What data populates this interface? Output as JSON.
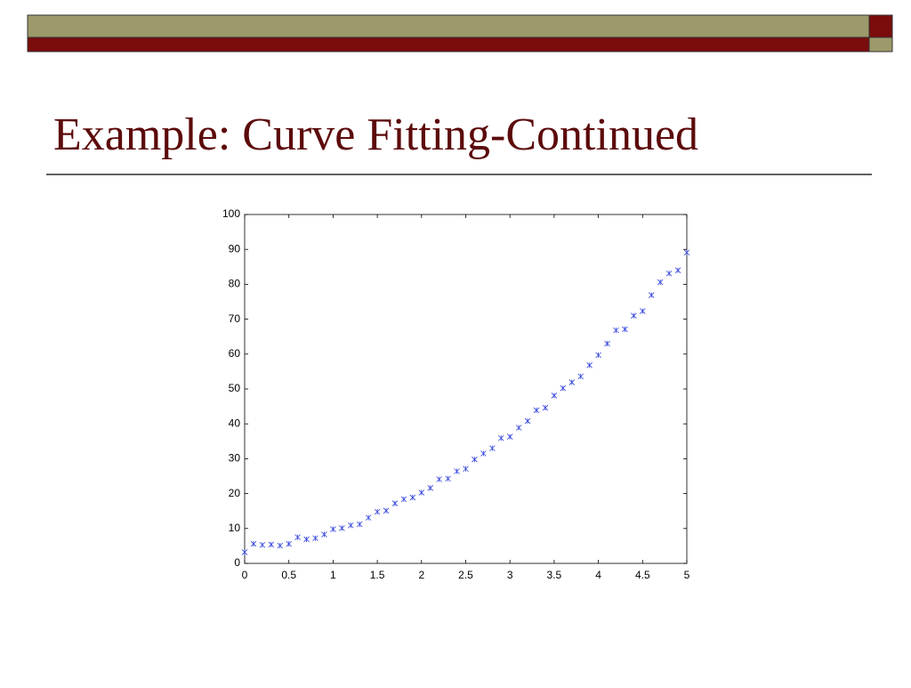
{
  "slide": {
    "title": "Example: Curve Fitting-Continued"
  },
  "chart_data": {
    "type": "scatter",
    "x": [
      0,
      0.1,
      0.2,
      0.3,
      0.4,
      0.5,
      0.6,
      0.7,
      0.8,
      0.9,
      1,
      1.1,
      1.2,
      1.3,
      1.4,
      1.5,
      1.6,
      1.7,
      1.8,
      1.9,
      2,
      2.1,
      2.2,
      2.3,
      2.4,
      2.5,
      2.6,
      2.7,
      2.8,
      2.9,
      3,
      3.1,
      3.2,
      3.3,
      3.4,
      3.5,
      3.6,
      3.7,
      3.8,
      3.9,
      4,
      4.1,
      4.2,
      4.3,
      4.4,
      4.5,
      4.6,
      4.7,
      4.8,
      4.9,
      5
    ],
    "values": [
      3.2,
      5.6,
      5.3,
      5.4,
      5.1,
      5.6,
      7.5,
      6.9,
      7.2,
      8.3,
      9.8,
      10.1,
      10.9,
      11.2,
      13.1,
      14.8,
      15.1,
      17.2,
      18.4,
      18.9,
      20.3,
      21.6,
      24.1,
      24.3,
      26.4,
      27.1,
      29.8,
      31.5,
      33.0,
      35.9,
      36.3,
      38.9,
      40.8,
      43.9,
      44.6,
      48.1,
      50.2,
      51.9,
      53.6,
      56.8,
      59.7,
      63.0,
      66.8,
      67.1,
      71.0,
      72.3,
      76.9,
      80.6,
      83.1,
      84.0,
      89.1
    ],
    "color": "#3344dd",
    "xlim": [
      0,
      5
    ],
    "xticks": [
      0,
      0.5,
      1,
      1.5,
      2,
      2.5,
      3,
      3.5,
      4,
      4.5,
      5
    ],
    "ylim": [
      0,
      100
    ],
    "yticks": [
      0,
      10,
      20,
      30,
      40,
      50,
      60,
      70,
      80,
      90,
      100
    ]
  }
}
